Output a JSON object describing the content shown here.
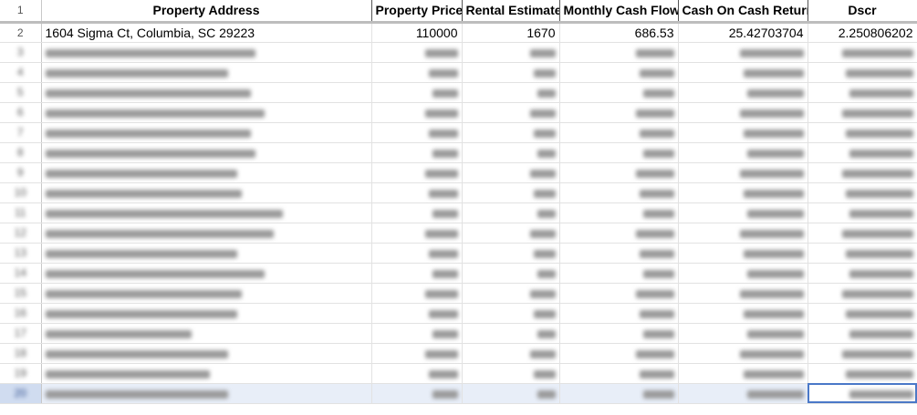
{
  "columns": [
    "Property Address",
    "Property Price",
    "Rental Estimate",
    "Monthly Cash Flow",
    "Cash On Cash Return",
    "Dscr"
  ],
  "row_numbers": {
    "header": "1",
    "first": "2"
  },
  "first_row": {
    "address": "1604 Sigma Ct, Columbia, SC 29223",
    "price": "110000",
    "rental": "1670",
    "cash_flow": "686.53",
    "coc_return": "25.42703704",
    "dscr": "2.250806202"
  },
  "blurred_row_numbers": [
    "3",
    "4",
    "5",
    "6",
    "7",
    "8",
    "9",
    "10",
    "11",
    "12",
    "13",
    "14",
    "15",
    "16",
    "17",
    "18",
    "19",
    "20"
  ],
  "selected_row": "20",
  "colors": {
    "selection": "#e8eef8",
    "active_cell_border": "#4a78c8"
  }
}
